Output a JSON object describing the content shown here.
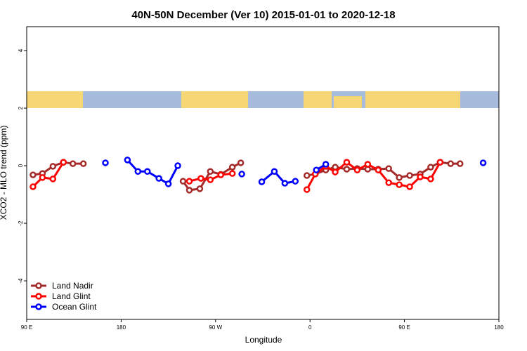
{
  "chart_data": {
    "type": "line",
    "title": "40N-50N December (Ver 10)   2015-01-01 to 2020-12-18",
    "x_label": "Longitude",
    "y_label": "XCO2 - MLO trend (ppm)",
    "xlim": [
      90,
      540
    ],
    "ylim": [
      -5.34,
      4.83
    ],
    "xticks": [
      {
        "value": 90,
        "label": "90 E"
      },
      {
        "value": 180,
        "label": "180"
      },
      {
        "value": 270,
        "label": "90 W"
      },
      {
        "value": 360,
        "label": "0"
      },
      {
        "value": 450,
        "label": "90 E"
      },
      {
        "value": 540,
        "label": "180"
      }
    ],
    "yticks": [
      -4,
      -2,
      0,
      2,
      4
    ],
    "legend": "bottom-left",
    "series": [
      {
        "name": "Land Nadir",
        "color": "#a52a2a",
        "x": [
          96,
          105,
          115,
          125,
          134,
          144,
          null,
          239,
          245,
          255,
          265,
          275,
          286,
          294,
          null,
          357,
          365,
          375,
          384,
          395,
          405,
          415,
          425,
          435,
          445,
          455,
          465,
          475,
          484,
          494,
          503
        ],
        "values": [
          -0.32,
          -0.27,
          -0.02,
          0.12,
          0.07,
          0.07,
          null,
          -0.54,
          -0.85,
          -0.8,
          -0.2,
          -0.3,
          -0.05,
          0.1,
          null,
          -0.34,
          -0.29,
          -0.15,
          -0.05,
          -0.12,
          -0.1,
          -0.12,
          -0.12,
          -0.1,
          -0.41,
          -0.34,
          -0.29,
          -0.05,
          0.12,
          0.07,
          0.07
        ]
      },
      {
        "name": "Land Glint",
        "color": "#ff0000",
        "x": [
          96,
          105,
          115,
          125,
          null,
          245,
          256,
          265,
          275,
          286,
          null,
          357,
          365,
          375,
          384,
          395,
          405,
          415,
          425,
          435,
          445,
          455,
          465,
          475,
          484
        ],
        "values": [
          -0.73,
          -0.41,
          -0.46,
          0.12,
          null,
          -0.54,
          -0.44,
          -0.49,
          -0.32,
          -0.27,
          null,
          -0.83,
          -0.29,
          -0.02,
          -0.22,
          0.12,
          -0.15,
          0.05,
          -0.15,
          -0.59,
          -0.66,
          -0.73,
          -0.39,
          -0.46,
          0.12
        ]
      },
      {
        "name": "Ocean Glint",
        "color": "#0000ff",
        "x": [
          165,
          null,
          186,
          196,
          205,
          216,
          225,
          234,
          null,
          295,
          null,
          314,
          326,
          336,
          346,
          null,
          366,
          375,
          null,
          525
        ],
        "values": [
          0.1,
          null,
          0.2,
          -0.2,
          -0.2,
          -0.44,
          -0.63,
          0.0,
          null,
          -0.29,
          null,
          -0.56,
          -0.2,
          -0.61,
          -0.54,
          null,
          -0.15,
          0.05,
          null,
          0.1
        ]
      }
    ]
  }
}
